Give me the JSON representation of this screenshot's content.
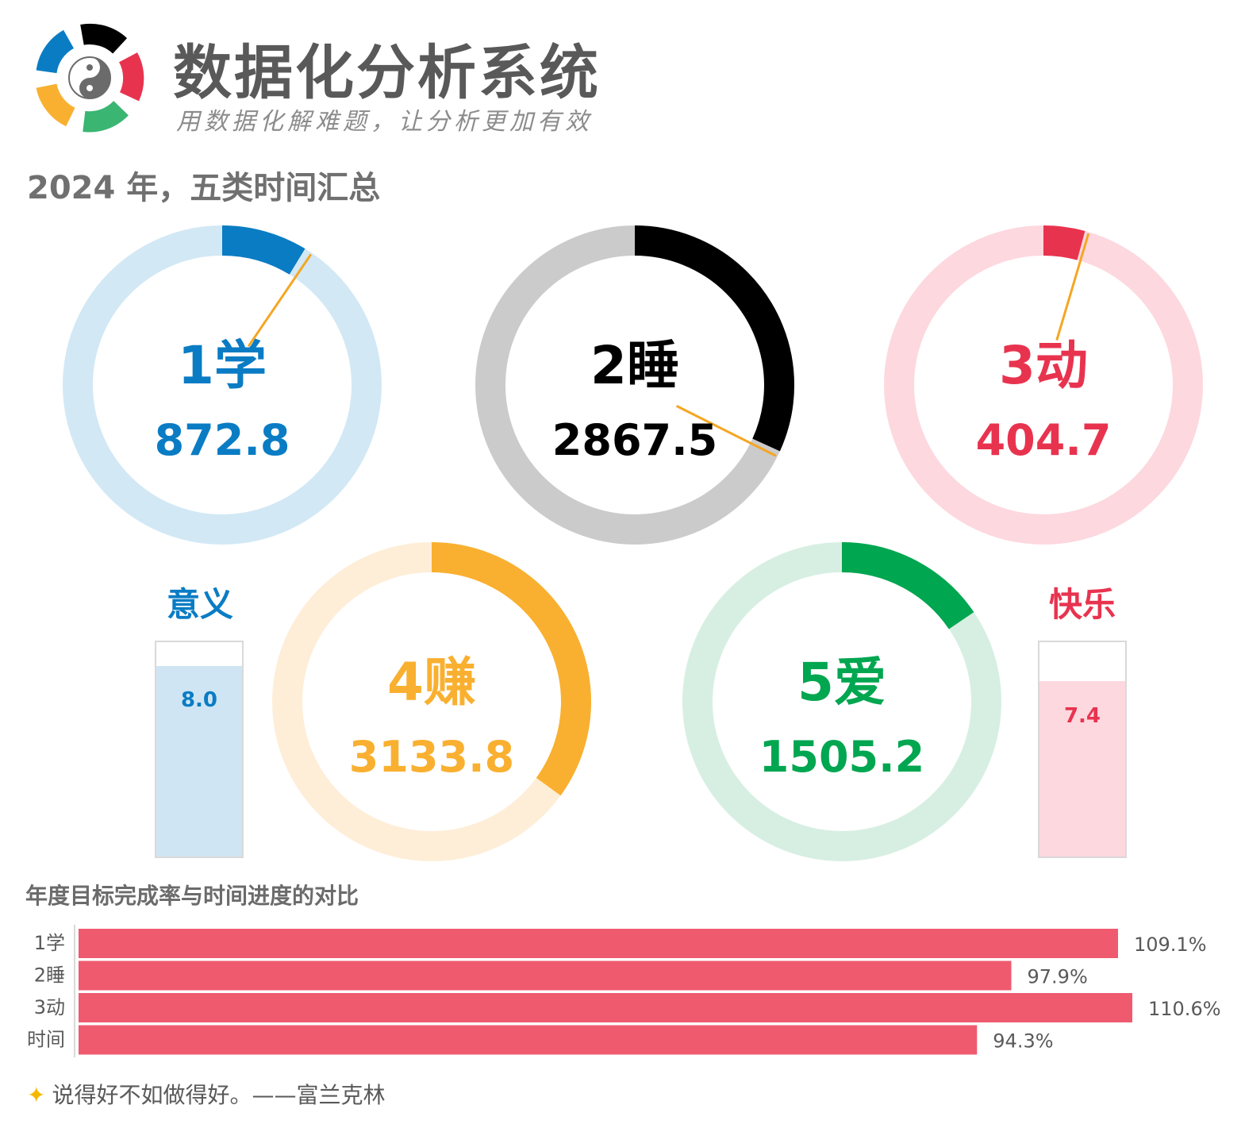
{
  "header": {
    "title": "数据化分析系统",
    "subtitle": "用数据化解难题，让分析更加有效"
  },
  "section_title": "2024 年，五类时间汇总",
  "mini_bars": [
    {
      "label": "意义",
      "value_text": "8.0",
      "fraction": 0.89,
      "color": "#0a7cc4",
      "fill": "#cfe5f3"
    },
    {
      "label": "快乐",
      "value_text": "7.4",
      "fraction": 0.82,
      "color": "#e8334f",
      "fill": "#fdd8df"
    }
  ],
  "bar_chart_title": "年度目标完成率与时间进度的对比",
  "quote": {
    "icon": "sparkles-icon",
    "text": "说得好不如做得好。——富兰克林"
  },
  "chart_data": [
    {
      "type": "pie",
      "series": [
        {
          "name": "1学",
          "value": 872.8,
          "value_text": "872.8",
          "fraction": 0.087,
          "marker": 0.095,
          "color": "#0a7cc4",
          "track": "#d2e8f5"
        },
        {
          "name": "2睡",
          "value": 2867.5,
          "value_text": "2867.5",
          "fraction": 0.318,
          "marker": 0.324,
          "color": "#000000",
          "track": "#cbcbcb"
        },
        {
          "name": "3动",
          "value": 404.7,
          "value_text": "404.7",
          "fraction": 0.042,
          "marker": 0.046,
          "color": "#e8334f",
          "track": "#fdd8df"
        },
        {
          "name": "4赚",
          "value": 3133.8,
          "value_text": "3133.8",
          "fraction": 0.35,
          "marker": null,
          "color": "#f9b030",
          "track": "#feeed8"
        },
        {
          "name": "5爱",
          "value": 1505.2,
          "value_text": "1505.2",
          "fraction": 0.155,
          "marker": null,
          "color": "#00a650",
          "track": "#d7efe2"
        }
      ]
    },
    {
      "type": "bar",
      "orientation": "horizontal",
      "categories": [
        "1学",
        "2睡",
        "3动",
        "时间"
      ],
      "values": [
        109.1,
        97.9,
        110.6,
        94.3
      ],
      "value_labels": [
        "109.1%",
        "97.9%",
        "110.6%",
        "94.3%"
      ],
      "color": "#ef5a6f",
      "xlim": [
        0,
        110.6
      ]
    }
  ]
}
